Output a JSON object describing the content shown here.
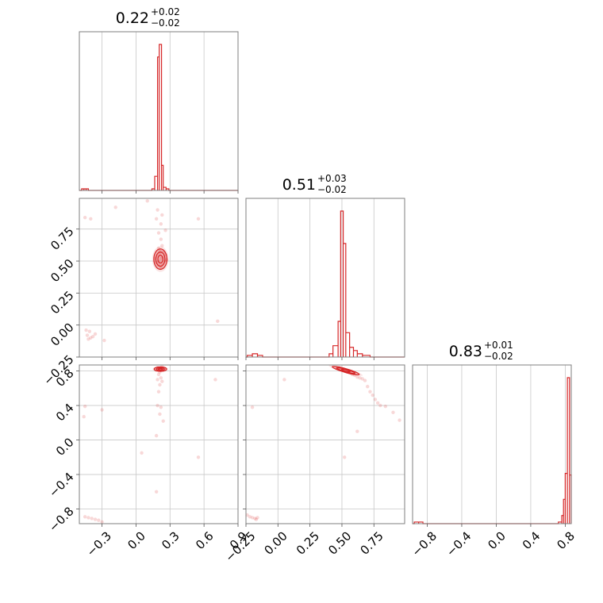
{
  "chart_data": {
    "type": "corner",
    "color": "#d62728",
    "parameters": [
      {
        "label": "0.22",
        "plus": "+0.02",
        "minus": "−0.02"
      },
      {
        "label": "0.51",
        "plus": "+0.03",
        "minus": "−0.02"
      },
      {
        "label": "0.83",
        "plus": "+0.01",
        "minus": "−0.02"
      }
    ],
    "axes": [
      {
        "range": [
          -0.5,
          0.9
        ],
        "ticks": [
          -0.3,
          0.0,
          0.3,
          0.6,
          0.9
        ],
        "tick_labels": [
          "−0.3",
          "0.0",
          "0.3",
          "0.6",
          "0.9"
        ]
      },
      {
        "range": [
          -0.25,
          0.99
        ],
        "ticks": [
          -0.25,
          0.0,
          0.25,
          0.5,
          0.75
        ],
        "tick_labels": [
          "−0.25",
          "0.00",
          "0.25",
          "0.50",
          "0.75"
        ]
      },
      {
        "range": [
          -0.97,
          0.87
        ],
        "ticks": [
          -0.8,
          -0.4,
          0.0,
          0.4,
          0.8
        ],
        "tick_labels": [
          "−0.8",
          "−0.4",
          "0.0",
          "0.4",
          "0.8"
        ]
      }
    ],
    "histograms": [
      {
        "bins": [
          [
            -0.48,
            -0.46,
            0.01
          ],
          [
            -0.46,
            -0.44,
            0.01
          ],
          [
            -0.44,
            -0.42,
            0.01
          ],
          [
            0.14,
            0.165,
            0.01
          ],
          [
            0.165,
            0.19,
            0.09
          ],
          [
            0.19,
            0.205,
            0.85
          ],
          [
            0.205,
            0.225,
            0.93
          ],
          [
            0.225,
            0.24,
            0.16
          ],
          [
            0.24,
            0.265,
            0.02
          ],
          [
            0.265,
            0.29,
            0.01
          ]
        ]
      },
      {
        "bins": [
          [
            -0.24,
            -0.2,
            0.01
          ],
          [
            -0.2,
            -0.16,
            0.02
          ],
          [
            -0.16,
            -0.12,
            0.01
          ],
          [
            0.4,
            0.43,
            0.02
          ],
          [
            0.43,
            0.47,
            0.07
          ],
          [
            0.47,
            0.49,
            0.22
          ],
          [
            0.49,
            0.51,
            0.9
          ],
          [
            0.51,
            0.53,
            0.7
          ],
          [
            0.53,
            0.56,
            0.15
          ],
          [
            0.56,
            0.59,
            0.06
          ],
          [
            0.59,
            0.62,
            0.04
          ],
          [
            0.62,
            0.66,
            0.02
          ],
          [
            0.66,
            0.72,
            0.01
          ]
        ]
      },
      {
        "bins": [
          [
            -0.95,
            -0.9,
            0.01
          ],
          [
            -0.9,
            -0.85,
            0.01
          ],
          [
            0.72,
            0.76,
            0.01
          ],
          [
            0.76,
            0.78,
            0.05
          ],
          [
            0.78,
            0.8,
            0.15
          ],
          [
            0.8,
            0.825,
            0.31
          ],
          [
            0.825,
            0.85,
            0.9
          ],
          [
            0.85,
            0.87,
            0.3
          ]
        ]
      }
    ],
    "scatter": [
      {
        "xi": 0,
        "yi": 1,
        "points": [
          [
            0.22,
            0.52
          ],
          [
            0.2,
            0.5
          ],
          [
            0.24,
            0.53
          ],
          [
            0.21,
            0.56
          ],
          [
            0.23,
            0.48
          ],
          [
            0.19,
            0.54
          ],
          [
            0.25,
            0.5
          ],
          [
            0.2,
            0.6
          ],
          [
            0.22,
            0.45
          ],
          [
            0.18,
            0.49
          ],
          [
            0.26,
            0.55
          ],
          [
            0.21,
            0.58
          ],
          [
            0.23,
            0.62
          ],
          [
            0.2,
            0.47
          ],
          [
            0.24,
            0.57
          ],
          [
            0.17,
            0.52
          ],
          [
            0.27,
            0.51
          ],
          [
            0.22,
            0.67
          ],
          [
            0.2,
            0.72
          ],
          [
            0.19,
            0.9
          ],
          [
            0.23,
            0.86
          ],
          [
            0.18,
            0.83
          ],
          [
            0.22,
            0.79
          ],
          [
            0.26,
            0.74
          ],
          [
            -0.43,
            -0.08
          ],
          [
            -0.41,
            -0.05
          ],
          [
            -0.38,
            -0.09
          ],
          [
            -0.44,
            -0.04
          ],
          [
            -0.4,
            -0.1
          ],
          [
            -0.36,
            -0.07
          ],
          [
            -0.42,
            -0.11
          ],
          [
            -0.28,
            -0.12
          ],
          [
            -0.45,
            0.84
          ],
          [
            -0.4,
            0.83
          ],
          [
            0.55,
            0.83
          ],
          [
            0.72,
            0.03
          ],
          [
            -0.18,
            0.92
          ],
          [
            0.1,
            0.97
          ]
        ]
      },
      {
        "xi": 0,
        "yi": 2,
        "points": [
          [
            0.2,
            0.82
          ],
          [
            0.22,
            0.83
          ],
          [
            0.24,
            0.81
          ],
          [
            0.19,
            0.84
          ],
          [
            0.23,
            0.85
          ],
          [
            0.21,
            0.79
          ],
          [
            0.25,
            0.83
          ],
          [
            0.18,
            0.81
          ],
          [
            0.2,
            0.76
          ],
          [
            0.22,
            0.72
          ],
          [
            0.19,
            0.7
          ],
          [
            0.23,
            0.68
          ],
          [
            0.21,
            0.64
          ],
          [
            0.2,
            0.56
          ],
          [
            0.19,
            0.4
          ],
          [
            0.22,
            0.38
          ],
          [
            0.21,
            0.3
          ],
          [
            0.24,
            0.22
          ],
          [
            0.18,
            0.05
          ],
          [
            0.05,
            -0.15
          ],
          [
            0.18,
            -0.6
          ],
          [
            -0.45,
            -0.89
          ],
          [
            -0.42,
            -0.9
          ],
          [
            -0.39,
            -0.91
          ],
          [
            -0.36,
            -0.92
          ],
          [
            -0.33,
            -0.93
          ],
          [
            -0.3,
            -0.95
          ],
          [
            -0.45,
            0.39
          ],
          [
            -0.46,
            0.27
          ],
          [
            -0.3,
            0.35
          ],
          [
            0.55,
            -0.2
          ],
          [
            0.7,
            0.7
          ]
        ]
      },
      {
        "xi": 1,
        "yi": 2,
        "points": [
          [
            0.5,
            0.82
          ],
          [
            0.52,
            0.81
          ],
          [
            0.54,
            0.79
          ],
          [
            0.56,
            0.78
          ],
          [
            0.58,
            0.76
          ],
          [
            0.6,
            0.75
          ],
          [
            0.62,
            0.73
          ],
          [
            0.64,
            0.72
          ],
          [
            0.48,
            0.84
          ],
          [
            0.47,
            0.83
          ],
          [
            0.66,
            0.71
          ],
          [
            0.68,
            0.69
          ],
          [
            0.7,
            0.62
          ],
          [
            0.72,
            0.56
          ],
          [
            0.74,
            0.52
          ],
          [
            0.76,
            0.47
          ],
          [
            0.78,
            0.43
          ],
          [
            0.8,
            0.4
          ],
          [
            0.84,
            0.39
          ],
          [
            0.9,
            0.32
          ],
          [
            0.95,
            0.23
          ],
          [
            0.62,
            0.1
          ],
          [
            0.52,
            -0.2
          ],
          [
            -0.22,
            -0.89
          ],
          [
            -0.2,
            -0.9
          ],
          [
            -0.18,
            -0.91
          ],
          [
            -0.16,
            -0.9
          ],
          [
            -0.24,
            -0.87
          ],
          [
            -0.17,
            -0.92
          ],
          [
            0.05,
            0.7
          ],
          [
            -0.2,
            0.38
          ]
        ]
      }
    ],
    "contours": [
      {
        "xi": 0,
        "yi": 1,
        "cx": 0.215,
        "cy": 0.515,
        "rx": [
          0.022,
          0.04,
          0.058
        ],
        "ry": [
          0.03,
          0.055,
          0.08
        ],
        "tilt": 0
      },
      {
        "xi": 0,
        "yi": 2,
        "cx": 0.215,
        "cy": 0.822,
        "rx": [
          0.018,
          0.035,
          0.055
        ],
        "ry": [
          0.008,
          0.016,
          0.026
        ],
        "tilt": 0
      },
      {
        "xi": 1,
        "yi": 2,
        "cx": 0.53,
        "cy": 0.805,
        "rx": [
          0.035,
          0.075,
          0.11
        ],
        "ry": [
          0.008,
          0.014,
          0.022
        ],
        "tilt": 16
      }
    ]
  }
}
